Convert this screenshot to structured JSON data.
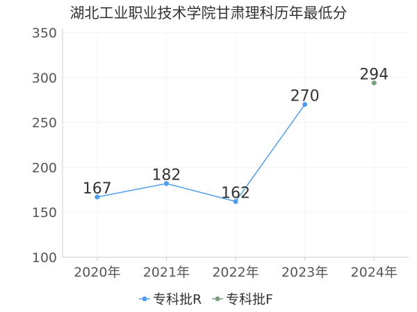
{
  "chart_data": {
    "type": "line",
    "title": "湖北工业职业技术学院甘肃理科历年最低分",
    "categories": [
      "2020年",
      "2021年",
      "2022年",
      "2023年",
      "2024年"
    ],
    "series": [
      {
        "name": "专科批R",
        "color": "#4a9ff5",
        "values": [
          167,
          182,
          162,
          270,
          null
        ]
      },
      {
        "name": "专科批F",
        "color": "#7a9e7e",
        "values": [
          null,
          null,
          null,
          null,
          294
        ]
      }
    ],
    "ylim": [
      100,
      350
    ],
    "yticks": [
      100,
      150,
      200,
      250,
      300,
      350
    ],
    "grid": true,
    "legend": "bottom-center"
  }
}
